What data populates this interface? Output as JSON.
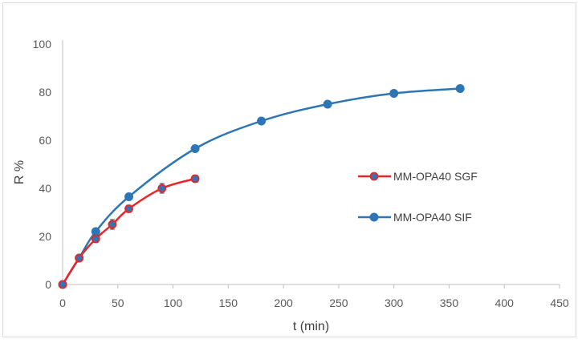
{
  "chart_data": {
    "type": "line",
    "title": "",
    "xlabel": "t (min)",
    "ylabel": "R %",
    "xlim": [
      0,
      450
    ],
    "ylim": [
      0,
      100
    ],
    "xticks": [
      0,
      50,
      100,
      150,
      200,
      250,
      300,
      350,
      400,
      450
    ],
    "yticks": [
      0,
      20,
      40,
      60,
      80,
      100
    ],
    "grid": false,
    "legend_position": "right",
    "series": [
      {
        "name": "MM-OPA40 SGF",
        "color": "#e8262a",
        "marker_fill": "#2e75b6",
        "x": [
          0,
          15,
          30,
          45,
          60,
          90,
          120
        ],
        "y": [
          0,
          11,
          19,
          25,
          31.5,
          40,
          44
        ],
        "error": [
          0,
          0.8,
          1.5,
          2,
          1.5,
          2,
          1.5
        ]
      },
      {
        "name": "MM-OPA40 SIF",
        "color": "#2e75b6",
        "marker_fill": "#2e75b6",
        "x": [
          0,
          15,
          30,
          60,
          120,
          180,
          240,
          300,
          360
        ],
        "y": [
          0,
          11,
          22,
          36.5,
          56.5,
          68,
          75,
          79.5,
          81.5
        ],
        "error": []
      }
    ]
  }
}
